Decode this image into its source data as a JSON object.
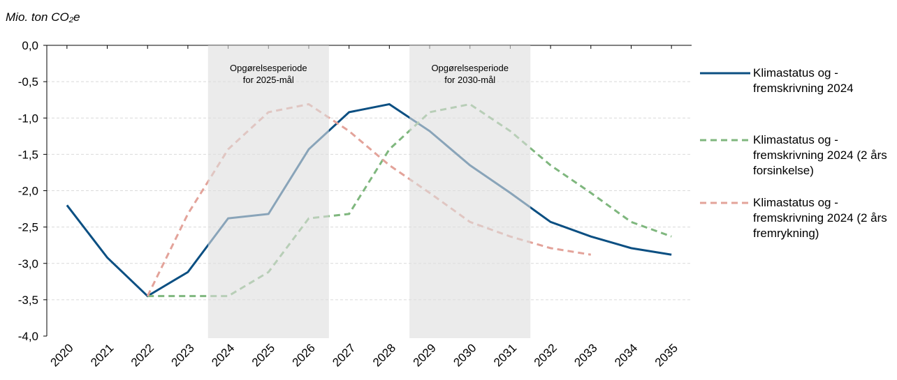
{
  "chart_data": {
    "type": "line",
    "y_label": "Mio. ton CO₂e",
    "categories": [
      "2020",
      "2021",
      "2022",
      "2023",
      "2024",
      "2025",
      "2026",
      "2027",
      "2028",
      "2029",
      "2030",
      "2031",
      "2032",
      "2033",
      "2034",
      "2035"
    ],
    "series": [
      {
        "name": "Klimastatus og - fremskrivning 2024",
        "color": "#0b4f82",
        "dash": false,
        "values": [
          -2.2,
          -2.92,
          -3.45,
          -3.12,
          -2.38,
          -2.32,
          -1.43,
          -0.92,
          -0.81,
          -1.18,
          -1.65,
          -2.03,
          -2.43,
          -2.63,
          -2.79,
          -2.88
        ]
      },
      {
        "name": "Klimastatus og - fremskrivning 2024 (2 års forsinkelse)",
        "color": "#7fb77e",
        "dash": true,
        "values": [
          null,
          null,
          -3.45,
          -3.45,
          -3.45,
          -3.12,
          -2.38,
          -2.32,
          -1.43,
          -0.92,
          -0.81,
          -1.18,
          -1.65,
          -2.03,
          -2.43,
          -2.63
        ]
      },
      {
        "name": "Klimastatus og - fremskrivning 2024 (2 års fremrykning)",
        "color": "#e3a39a",
        "dash": true,
        "values": [
          null,
          null,
          -3.45,
          -2.32,
          -1.43,
          -0.92,
          -0.81,
          -1.18,
          -1.65,
          -2.03,
          -2.43,
          -2.63,
          -2.79,
          -2.88,
          null,
          null
        ]
      }
    ],
    "periods": [
      {
        "lines": [
          "Opgørelsesperiode",
          "for 2025-mål"
        ],
        "start": "2024",
        "end": "2026"
      },
      {
        "lines": [
          "Opgørelsesperiode",
          "for 2030-mål"
        ],
        "start": "2029",
        "end": "2031"
      }
    ],
    "ylim": [
      -4.0,
      0.0
    ],
    "yticks": [
      {
        "value": 0,
        "label": "0,0"
      },
      {
        "value": -0.5,
        "label": "-0,5"
      },
      {
        "value": -1,
        "label": "-1,0"
      },
      {
        "value": -1.5,
        "label": "-1,5"
      },
      {
        "value": -2,
        "label": "-2,0"
      },
      {
        "value": -2.5,
        "label": "-2,5"
      },
      {
        "value": -3,
        "label": "-3,0"
      },
      {
        "value": -3.5,
        "label": "-3,5"
      },
      {
        "value": -4,
        "label": "-4,0"
      }
    ],
    "grid": true
  }
}
